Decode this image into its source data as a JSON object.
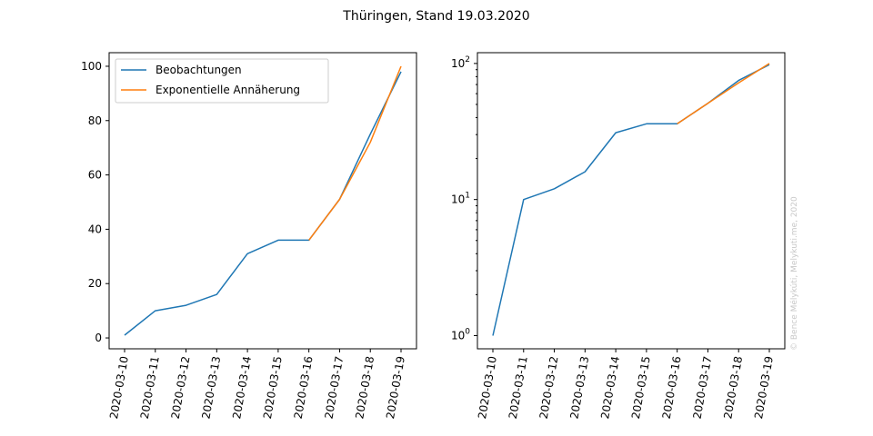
{
  "figure": {
    "title": "Thüringen, Stand 19.03.2020",
    "watermark": "© Bence Mélykúti, Melykuti.me, 2020"
  },
  "colors": {
    "observations": "#1f77b4",
    "fit": "#ff7f0e"
  },
  "chart_data": [
    {
      "type": "line",
      "scale": "linear",
      "x": [
        "2020-03-10",
        "2020-03-11",
        "2020-03-12",
        "2020-03-13",
        "2020-03-14",
        "2020-03-15",
        "2020-03-16",
        "2020-03-17",
        "2020-03-18",
        "2020-03-19"
      ],
      "ylim": [
        -4,
        105
      ],
      "yticks": [
        0,
        20,
        40,
        60,
        80,
        100
      ],
      "legend": "top-left",
      "grid": false,
      "series": [
        {
          "name": "Beobachtungen",
          "x": [
            "2020-03-10",
            "2020-03-11",
            "2020-03-12",
            "2020-03-13",
            "2020-03-14",
            "2020-03-15",
            "2020-03-16",
            "2020-03-17",
            "2020-03-18",
            "2020-03-19"
          ],
          "values": [
            1,
            10,
            12,
            16,
            31,
            36,
            36,
            51,
            75,
            98
          ]
        },
        {
          "name": "Exponentielle Annäherung",
          "x": [
            "2020-03-16",
            "2020-03-17",
            "2020-03-18",
            "2020-03-19"
          ],
          "values": [
            36,
            51,
            72,
            100
          ]
        }
      ]
    },
    {
      "type": "line",
      "scale": "log",
      "x": [
        "2020-03-10",
        "2020-03-11",
        "2020-03-12",
        "2020-03-13",
        "2020-03-14",
        "2020-03-15",
        "2020-03-16",
        "2020-03-17",
        "2020-03-18",
        "2020-03-19"
      ],
      "ylim": [
        0.8,
        120
      ],
      "yticks": [
        1,
        10,
        100
      ],
      "yticklabels": [
        {
          "base": "10",
          "exp": "0"
        },
        {
          "base": "10",
          "exp": "1"
        },
        {
          "base": "10",
          "exp": "2"
        }
      ],
      "grid": false,
      "series": [
        {
          "x": [
            "2020-03-10",
            "2020-03-11",
            "2020-03-12",
            "2020-03-13",
            "2020-03-14",
            "2020-03-15",
            "2020-03-16",
            "2020-03-17",
            "2020-03-18",
            "2020-03-19"
          ],
          "values": [
            1,
            10,
            12,
            16,
            31,
            36,
            36,
            51,
            75,
            98
          ]
        },
        {
          "x": [
            "2020-03-16",
            "2020-03-17",
            "2020-03-18",
            "2020-03-19"
          ],
          "values": [
            36,
            51,
            72,
            100
          ]
        }
      ]
    }
  ]
}
